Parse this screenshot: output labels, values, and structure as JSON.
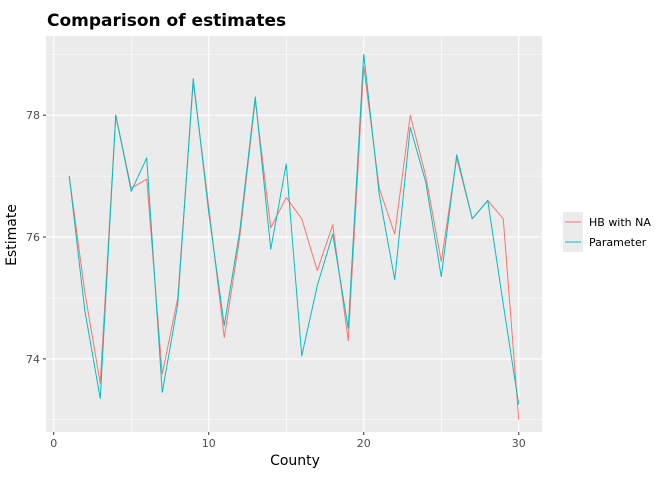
{
  "chart_data": {
    "type": "line",
    "title": "Comparison of estimates",
    "xlabel": "County",
    "ylabel": "Estimate",
    "xlim": [
      -0.5,
      31.5
    ],
    "ylim": [
      72.8,
      79.3
    ],
    "x_ticks": [
      0,
      10,
      20,
      30
    ],
    "x_tick_labels": [
      "0",
      "10",
      "20",
      "30"
    ],
    "y_ticks": [
      74,
      76,
      78
    ],
    "y_tick_labels": [
      "74",
      "76",
      "78"
    ],
    "grid": true,
    "legend_position": "right",
    "x": [
      1,
      2,
      3,
      4,
      5,
      6,
      7,
      8,
      9,
      10,
      11,
      12,
      13,
      14,
      15,
      16,
      17,
      18,
      19,
      20,
      21,
      22,
      23,
      24,
      25,
      26,
      27,
      28,
      29,
      30
    ],
    "series": [
      {
        "name": "HB with NA",
        "color": "#F8766D",
        "values": [
          77.0,
          75.1,
          73.6,
          78.0,
          76.8,
          76.95,
          73.75,
          75.0,
          78.55,
          76.5,
          74.35,
          76.0,
          78.25,
          76.15,
          76.65,
          76.3,
          75.45,
          76.2,
          74.3,
          78.8,
          76.8,
          76.05,
          78.0,
          77.0,
          75.6,
          77.3,
          76.3,
          76.6,
          76.3,
          73.0
        ]
      },
      {
        "name": "Parameter",
        "color": "#00BFC4",
        "values": [
          77.0,
          74.8,
          73.35,
          78.0,
          76.75,
          77.3,
          73.45,
          74.9,
          78.6,
          76.4,
          74.55,
          76.1,
          78.3,
          75.8,
          77.2,
          74.05,
          75.2,
          76.05,
          74.5,
          79.0,
          76.7,
          75.3,
          77.8,
          76.9,
          75.35,
          77.35,
          76.3,
          76.6,
          74.9,
          73.25
        ]
      }
    ]
  }
}
